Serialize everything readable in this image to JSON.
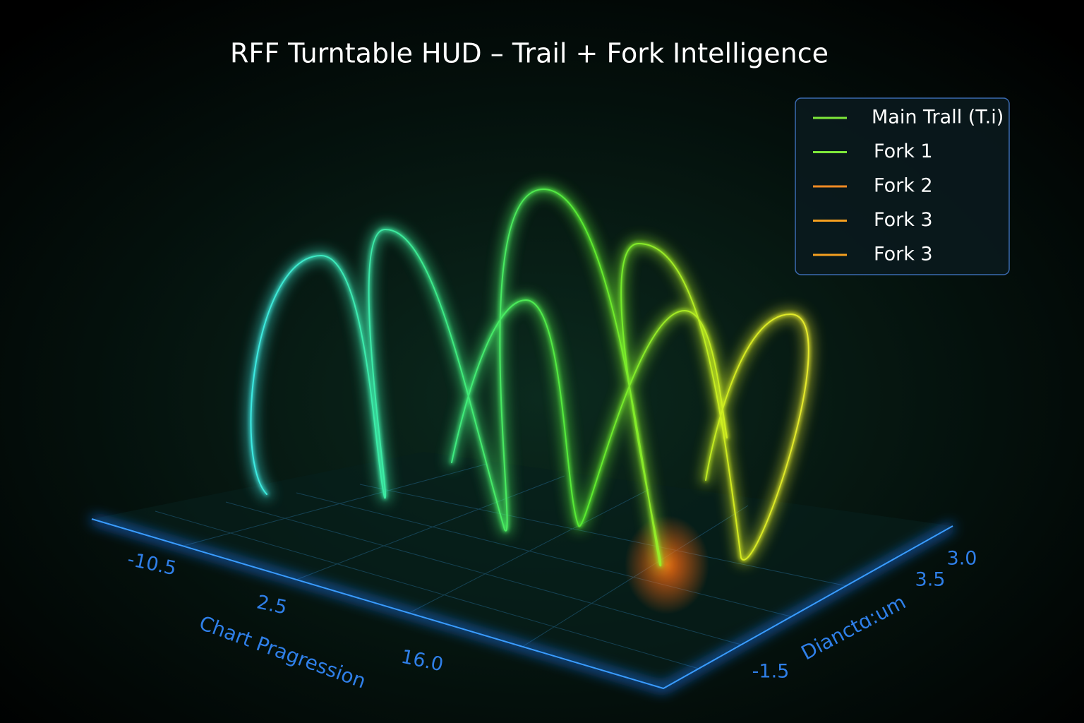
{
  "chart_data": {
    "type": "trail3d",
    "title": "RFF Turntable HUD – Trail + Fork Intelligence",
    "x_label": "Chart Pragression",
    "z_label": "Dianctɑ:um",
    "xticks": [
      -10.5,
      2.5,
      {
        "value": 16,
        "label": "16.0"
      }
    ],
    "zticks": [
      {
        "value": 3,
        "label": "3.0"
      },
      3.5,
      -1.5
    ],
    "series": [
      {
        "name": "Main Trall (T.i)",
        "color": "#7ee83a"
      },
      {
        "name": "Fork 1",
        "color": "#7ee83a"
      },
      {
        "name": "Fork 2",
        "color": "#f08a24"
      },
      {
        "name": "Fork 3",
        "color": "#f5a020"
      },
      {
        "name": "Fork 3",
        "color": "#f5a020"
      }
    ]
  }
}
